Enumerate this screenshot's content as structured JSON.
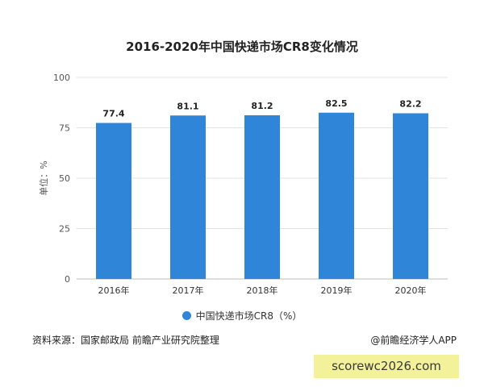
{
  "chart_data": {
    "type": "bar",
    "title": "2016-2020年中国快递市场CR8变化情况",
    "categories": [
      "2016年",
      "2017年",
      "2018年",
      "2019年",
      "2020年"
    ],
    "series": [
      {
        "name": "中国快递市场CR8（%）",
        "values": [
          77.4,
          81.1,
          81.2,
          82.5,
          82.2
        ]
      }
    ],
    "data_labels": [
      "77.4",
      "81.1",
      "81.2",
      "82.5",
      "82.2"
    ],
    "ylabel": "单位：%",
    "xlabel": "",
    "ylim": [
      0,
      100
    ],
    "yticks": [
      0,
      25,
      50,
      75,
      100
    ],
    "grid": true,
    "legend_position": "bottom",
    "bar_color": "#2f86d9"
  },
  "footer": {
    "source": "资料来源：国家邮政局 前瞻产业研究院整理",
    "credit": "@前瞻经济学人APP"
  },
  "watermark_badge": "scorewc2026.com"
}
